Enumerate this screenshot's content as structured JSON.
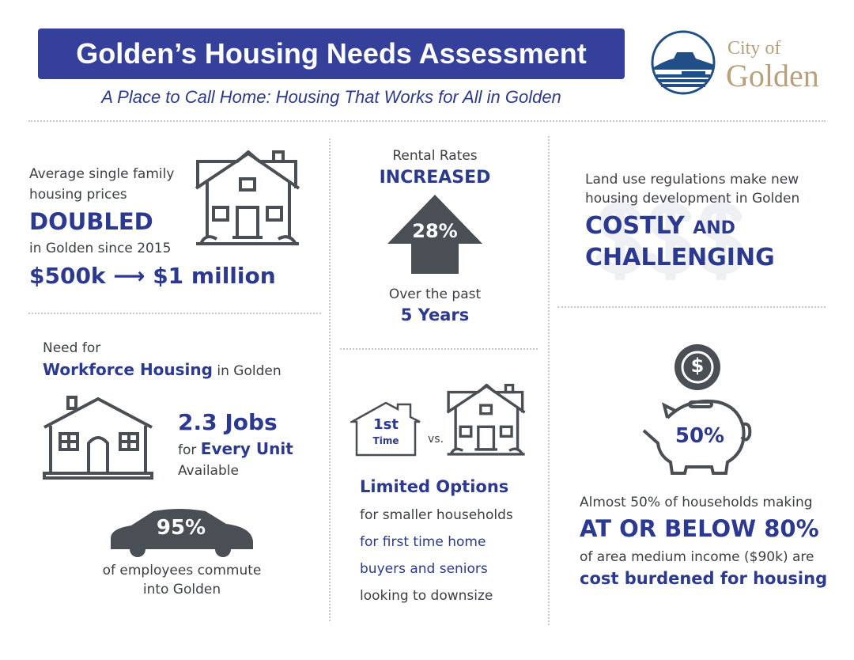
{
  "header": {
    "title": "Golden’s Housing Needs Assessment",
    "subtitle": "A Place to Call Home: Housing That Works for All in Golden"
  },
  "logo": {
    "line1": "City of",
    "line2": "Golden",
    "color": "#b9a07a"
  },
  "colors": {
    "accent": "#2b3990",
    "header_bg": "#34409a",
    "icon": "#4a4f55"
  },
  "prices": {
    "line1": "Average single family",
    "line2": "housing prices",
    "highlight": "DOUBLED",
    "line3": "in Golden since 2015",
    "from": "$500k",
    "arrow": "⟶",
    "to": "$1 million",
    "icon": "house-icon"
  },
  "rental": {
    "label": "Rental Rates",
    "highlight": "INCREASED",
    "percent": "28%",
    "line1": "Over the past",
    "period": "5 Years",
    "icon": "arrow-up-icon"
  },
  "land": {
    "line1": "Land use regulations make new",
    "line2": "housing development in Golden",
    "costly": "COSTLY",
    "and": "AND",
    "challenging": "CHALLENGING",
    "icon": "dollar-signs-icon"
  },
  "workforce": {
    "line1": "Need for",
    "highlight": "Workforce Housing",
    "suffix": " in Golden",
    "jobs": "2.3 Jobs",
    "for": "for ",
    "every_unit": "Every Unit",
    "available": "Available",
    "commute_percent": "95%",
    "commute_line1": "of employees commute",
    "commute_line2": "into Golden"
  },
  "options": {
    "badge1": "1st",
    "badge2": "Time",
    "vs": "vs.",
    "title": "Limited Options",
    "lines": [
      "for smaller households",
      "for first time home",
      "buyers and seniors",
      "looking to downsize"
    ]
  },
  "burden": {
    "percent": "50%",
    "coin": "$",
    "line1": "Almost 50% of households making",
    "highlight": "AT OR BELOW 80%",
    "line2": "of area medium income ($90k) are",
    "line3": "cost burdened for housing"
  }
}
